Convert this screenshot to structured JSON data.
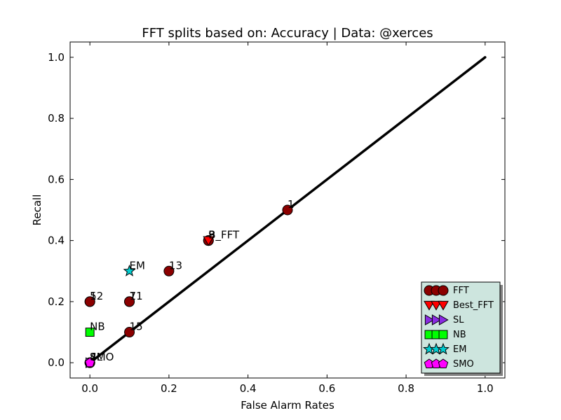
{
  "chart_data": {
    "type": "scatter",
    "title": "FFT splits based on: Accuracy  |  Data: @xerces",
    "xlabel": "False Alarm Rates",
    "ylabel": "Recall",
    "xlim": [
      -0.05,
      1.05
    ],
    "ylim": [
      -0.05,
      1.05
    ],
    "xticks": [
      "0.0",
      "0.2",
      "0.4",
      "0.6",
      "0.8",
      "1.0"
    ],
    "yticks": [
      "0.0",
      "0.2",
      "0.4",
      "0.6",
      "0.8",
      "1.0"
    ],
    "grid": false,
    "diagonal": {
      "x": [
        0,
        1
      ],
      "y": [
        0,
        1
      ],
      "color": "#000000"
    },
    "legend_position": "lower-right",
    "series": [
      {
        "name": "FFT",
        "marker": "circle",
        "color": "#8b0000",
        "points": [
          {
            "x": 0.5,
            "y": 0.5,
            "label": "1"
          },
          {
            "x": 0.3,
            "y": 0.4,
            "label": "3"
          },
          {
            "x": 0.3,
            "y": 0.4,
            "label": "9"
          },
          {
            "x": 0.2,
            "y": 0.3,
            "label": "13"
          },
          {
            "x": 0.0,
            "y": 0.2,
            "label": "5"
          },
          {
            "x": 0.0,
            "y": 0.2,
            "label": "12"
          },
          {
            "x": 0.1,
            "y": 0.2,
            "label": "7"
          },
          {
            "x": 0.1,
            "y": 0.2,
            "label": "11"
          },
          {
            "x": 0.1,
            "y": 0.1,
            "label": "15"
          },
          {
            "x": 0.0,
            "y": 0.0,
            "label": "2"
          },
          {
            "x": 0.0,
            "y": 0.0,
            "label": "4"
          }
        ]
      },
      {
        "name": "Best_FFT",
        "marker": "triangle-down",
        "color": "#ff0000",
        "points": [
          {
            "x": 0.3,
            "y": 0.4,
            "label": "B_FFT"
          }
        ]
      },
      {
        "name": "SL",
        "marker": "triangle-right",
        "color": "#8a2be2",
        "points": [
          {
            "x": 0.0,
            "y": 0.0,
            "label": "SL"
          }
        ]
      },
      {
        "name": "NB",
        "marker": "square",
        "color": "#00ff00",
        "points": [
          {
            "x": 0.0,
            "y": 0.1,
            "label": "NB"
          }
        ]
      },
      {
        "name": "EM",
        "marker": "star",
        "color": "#00ced1",
        "points": [
          {
            "x": 0.1,
            "y": 0.3,
            "label": "EM"
          }
        ]
      },
      {
        "name": "SMO",
        "marker": "pentagon",
        "color": "#ff00ff",
        "points": [
          {
            "x": 0.0,
            "y": 0.0,
            "label": "SMO"
          }
        ]
      }
    ]
  }
}
